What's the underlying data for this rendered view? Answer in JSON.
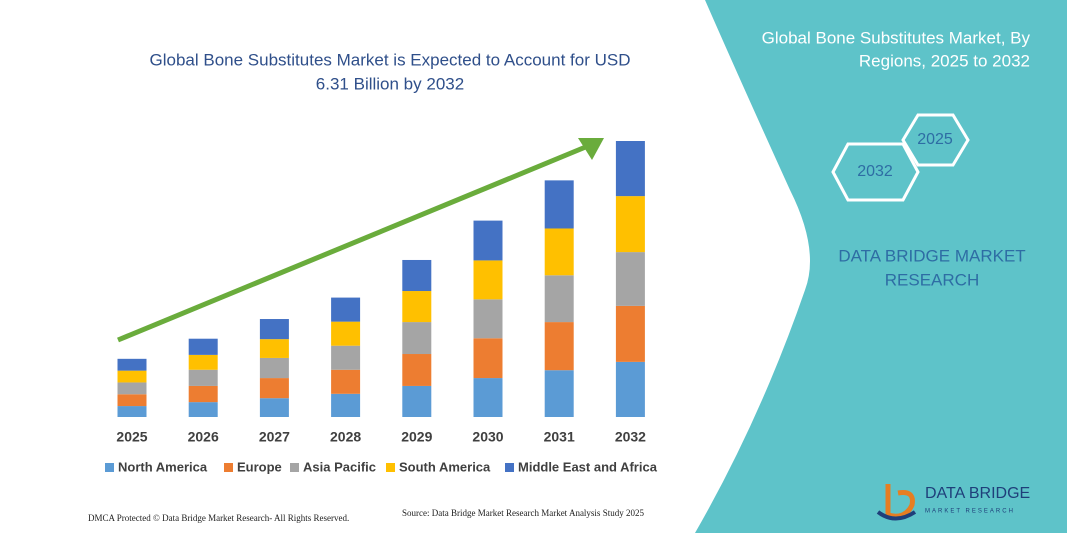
{
  "chart_data": {
    "type": "bar",
    "stacked": true,
    "title": [
      "Global Bone Substitutes Market is Expected to Account for USD",
      "6.31 Billion by 2032"
    ],
    "categories": [
      "2025",
      "2026",
      "2027",
      "2028",
      "2029",
      "2030",
      "2031",
      "2032"
    ],
    "series": [
      {
        "name": "North America",
        "color": "#5b9bd5",
        "values": [
          0.25,
          0.34,
          0.43,
          0.53,
          0.71,
          0.89,
          1.07,
          1.26
        ]
      },
      {
        "name": "Europe",
        "color": "#ed7d31",
        "values": [
          0.27,
          0.37,
          0.46,
          0.55,
          0.73,
          0.91,
          1.1,
          1.28
        ]
      },
      {
        "name": "Asia Pacific",
        "color": "#a5a5a5",
        "values": [
          0.27,
          0.37,
          0.46,
          0.55,
          0.73,
          0.89,
          1.07,
          1.23
        ]
      },
      {
        "name": "South America",
        "color": "#ffc000",
        "values": [
          0.27,
          0.34,
          0.43,
          0.55,
          0.71,
          0.89,
          1.07,
          1.28
        ]
      },
      {
        "name": "Middle East and Africa",
        "color": "#4472c4",
        "values": [
          0.27,
          0.37,
          0.46,
          0.55,
          0.71,
          0.91,
          1.1,
          1.26
        ]
      }
    ],
    "legend": "bottom",
    "grid": false
  },
  "panel": {
    "title": [
      "Global Bone Substitutes Market, By",
      "Regions, 2025 to 2032"
    ],
    "hex_labels": [
      "2025",
      "2032"
    ],
    "brand": [
      "DATA BRIDGE MARKET",
      "RESEARCH"
    ]
  },
  "footer": {
    "left": "DMCA Protected © Data Bridge Market Research- All Rights Reserved.",
    "source": "Source: Data Bridge Market Research  Market Analysis Study 2025",
    "logo": "DATA BRIDGE",
    "logo_sub": "MARKET RESEARCH"
  }
}
